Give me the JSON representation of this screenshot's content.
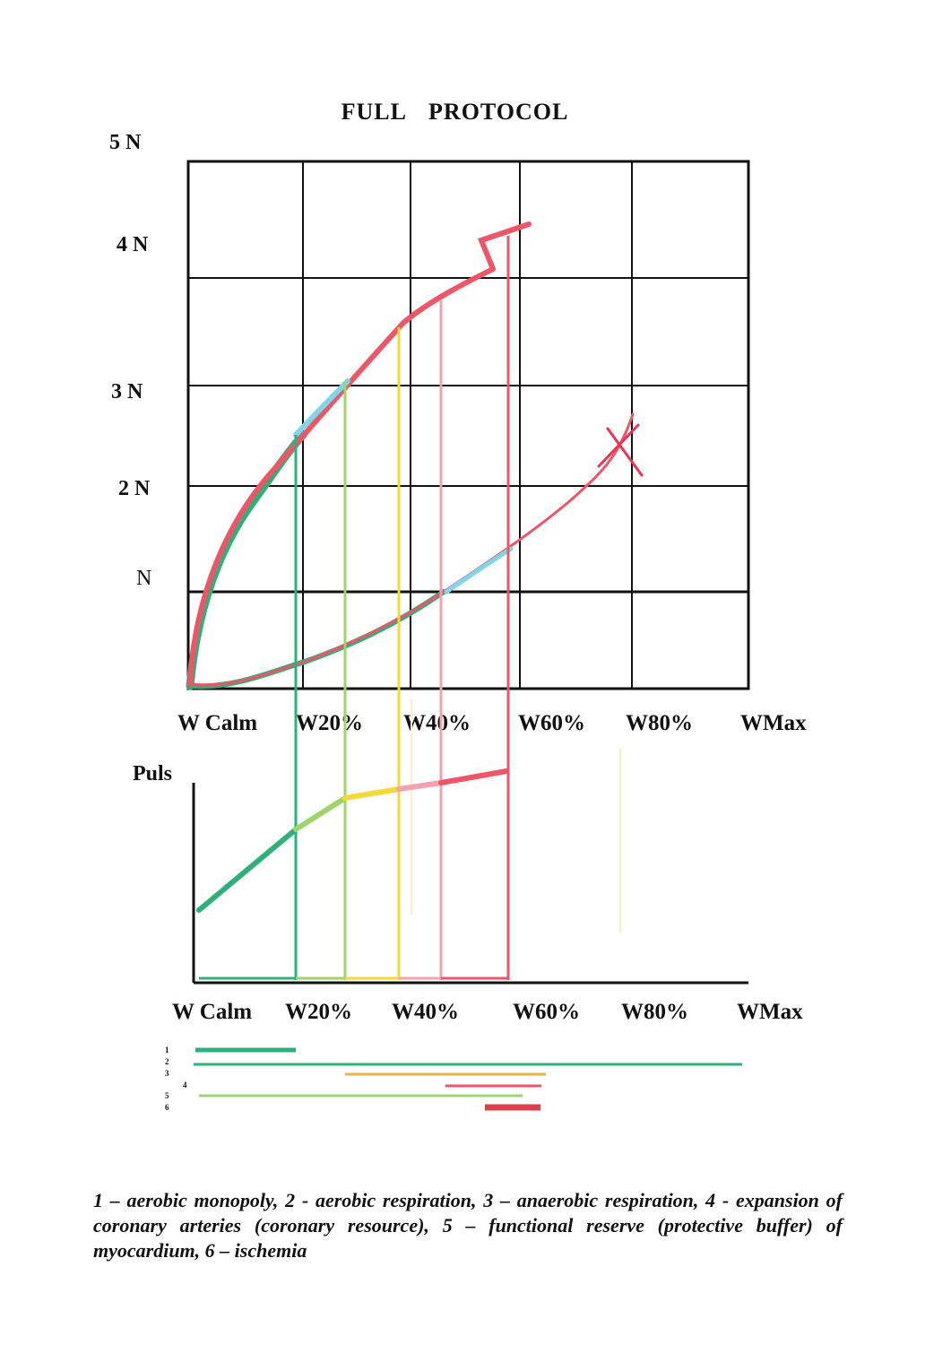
{
  "title": "FULL    PROTOCOL",
  "upper_chart": {
    "y_labels": [
      "5 N",
      "4 N",
      "3  N",
      "2 N",
      "N"
    ],
    "x_labels": [
      "W Calm",
      "W20%",
      "W40%",
      "W60%",
      "W80%",
      "WMax"
    ]
  },
  "lower_chart": {
    "y_label": "Puls",
    "x_labels": [
      "W Calm",
      "W20%",
      "W40%",
      "W60%",
      "W80%",
      "WMax"
    ]
  },
  "legend_numbers": [
    "1",
    "2",
    "3",
    "4",
    "5",
    "6"
  ],
  "caption": "1 – aerobic monopoly, 2 - aerobic respiration, 3 – anaerobic respiration, 4 - expansion of coronary arteries (coronary resource), 5 – functional reserve (protective buffer) of myocardium, 6 – ischemia",
  "colors": {
    "red": "#ee5566",
    "green": "#2fb07a",
    "light_green": "#9fd46a",
    "yellow": "#f5d83a",
    "pink": "#f2a3ae",
    "orange": "#f2b04a",
    "cyan": "#7fd6ea",
    "dark_red": "#d9414e"
  }
}
